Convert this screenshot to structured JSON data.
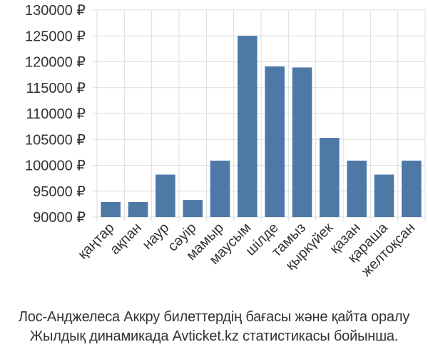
{
  "chart_data": {
    "type": "bar",
    "categories": [
      "қаңтар",
      "ақпан",
      "наур",
      "сәуір",
      "мамыр",
      "маусым",
      "шілде",
      "тамыз",
      "қыркүйек",
      "қазан",
      "қараша",
      "желтоқсан"
    ],
    "values": [
      92900,
      92900,
      98200,
      93300,
      100900,
      125000,
      119100,
      118900,
      105300,
      100900,
      98200,
      100900
    ],
    "y_ticks": [
      90000,
      95000,
      100000,
      105000,
      110000,
      115000,
      120000,
      125000,
      130000
    ],
    "y_tick_labels": [
      "90000 ₽",
      "95000 ₽",
      "100000 ₽",
      "105000 ₽",
      "110000 ₽",
      "115000 ₽",
      "120000 ₽",
      "125000 ₽",
      "130000 ₽"
    ],
    "ylim": [
      90000,
      130000
    ],
    "grid": true,
    "bar_color": "#4e79a7",
    "title": "",
    "xlabel": "",
    "ylabel": ""
  },
  "caption": {
    "line1": "Лос-Анджелеса Аккру билеттердің бағасы және қайта оралу",
    "line2": "Жылдық динамикада Avticket.kz статистикасы бойынша."
  }
}
